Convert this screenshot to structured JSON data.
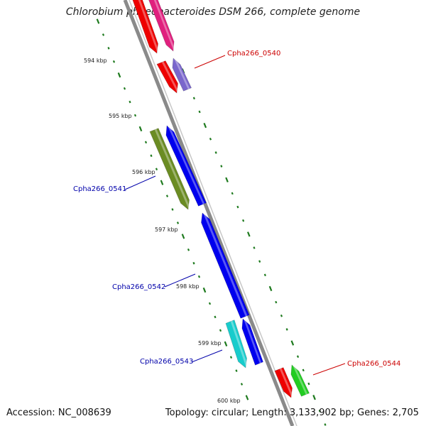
{
  "title": "Chlorobium phaeobacteroides DSM 266, complete genome",
  "accession": "Accession: NC_008639",
  "summary": "Topology: circular; Length: 3,133,902 bp; Genes: 2,705",
  "kbp_labels": [
    "594 kbp",
    "595 kbp",
    "596 kbp",
    "597 kbp",
    "598 kbp",
    "599 kbp",
    "600 kbp"
  ],
  "gene_labels": [
    {
      "text": "Cpha266_0540",
      "color": "#cc0000",
      "strand": "reverse"
    },
    {
      "text": "Cpha266_0541",
      "color": "#0000aa",
      "strand": "forward"
    },
    {
      "text": "Cpha266_0542",
      "color": "#0000aa",
      "strand": "forward"
    },
    {
      "text": "Cpha266_0543",
      "color": "#0000aa",
      "strand": "forward"
    },
    {
      "text": "Cpha266_0544",
      "color": "#cc0000",
      "strand": "reverse"
    }
  ],
  "colors": {
    "backbone": "#8a8a8a",
    "tick": "#1e7a1e",
    "red": "#ee0000",
    "magenta": "#e0207e",
    "lavender": "#7a66cc",
    "olive": "#6b8c23",
    "blue": "#0000ee",
    "cyan": "#18cccc",
    "green": "#22cc22"
  }
}
